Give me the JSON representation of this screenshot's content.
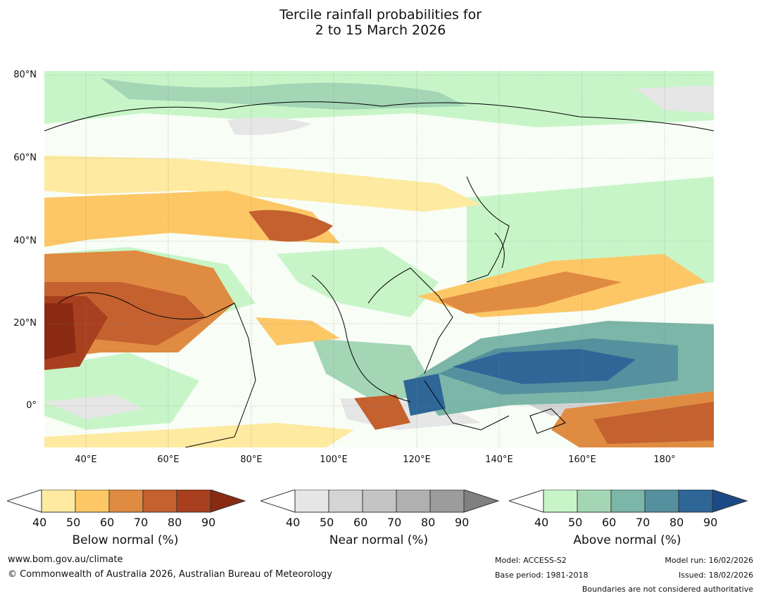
{
  "title": {
    "line1": "Tercile rainfall probabilities for",
    "line2": "2 to 15 March 2026"
  },
  "axes": {
    "lat_labels": [
      "80°N",
      "60°N",
      "40°N",
      "20°N",
      "0°"
    ],
    "lon_labels": [
      "40°E",
      "60°E",
      "80°E",
      "100°E",
      "120°E",
      "140°E",
      "160°E",
      "180°"
    ]
  },
  "colorbars": [
    {
      "title": "Below normal (%)",
      "ticks": [
        "40",
        "50",
        "60",
        "70",
        "80",
        "90"
      ],
      "colors": [
        "#ffffff",
        "#feeaa0",
        "#fdc766",
        "#e08b42",
        "#c4612f",
        "#a8401f",
        "#8a2a12"
      ]
    },
    {
      "title": "Near normal (%)",
      "ticks": [
        "40",
        "50",
        "60",
        "70",
        "80",
        "90"
      ],
      "colors": [
        "#ffffff",
        "#e6e6e6",
        "#d4d4d4",
        "#c4c4c4",
        "#b0b0b0",
        "#9c9c9c",
        "#808080"
      ]
    },
    {
      "title": "Above normal (%)",
      "ticks": [
        "40",
        "50",
        "60",
        "70",
        "80",
        "90"
      ],
      "colors": [
        "#ffffff",
        "#c8f5c8",
        "#a4d6b6",
        "#7bb6a8",
        "#55909e",
        "#2f6698",
        "#1a4a86"
      ]
    }
  ],
  "footer": {
    "website": "www.bom.gov.au/climate",
    "copyright": "© Commonwealth of Australia 2026, Australian Bureau of Meteorology",
    "model": "Model: ACCESS-S2",
    "base_period": "Base period: 1981-2018",
    "model_run": "Model run: 16/02/2026",
    "issued": "Issued: 18/02/2026",
    "boundaries_note": "Boundaries are not considered authoritative"
  }
}
